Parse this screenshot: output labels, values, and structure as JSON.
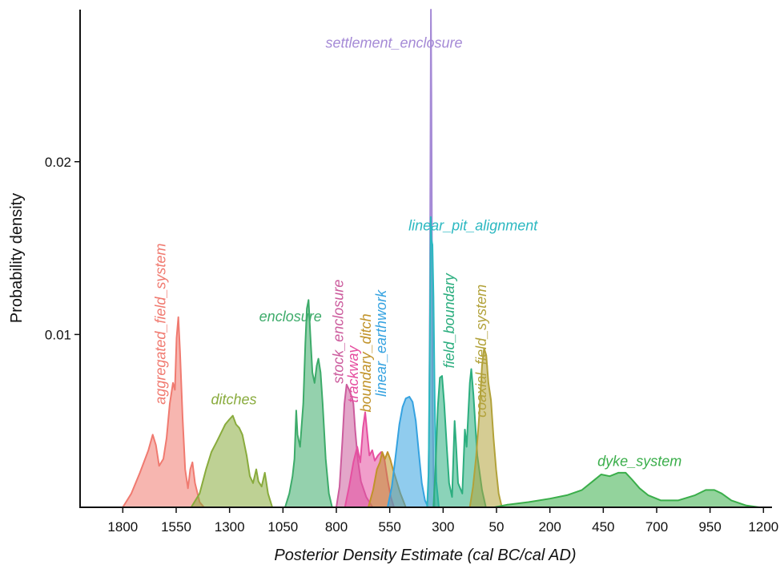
{
  "chart_data": {
    "type": "area",
    "xlabel": "Posterior Density Estimate (cal BC/cal AD)",
    "ylabel": "Probability density",
    "x_ticks": [
      "1800",
      "1550",
      "1300",
      "1050",
      "800",
      "550",
      "300",
      "50",
      "200",
      "450",
      "700",
      "950",
      "1200"
    ],
    "y_ticks": [
      "0.01",
      "0.02"
    ],
    "x_tick_values": [
      -1800,
      -1550,
      -1300,
      -1050,
      -800,
      -550,
      -300,
      -50,
      200,
      450,
      700,
      950,
      1200
    ],
    "y_tick_values": [
      0.01,
      0.02
    ],
    "xlim": [
      -2000,
      1240
    ],
    "ylim": [
      0,
      0.0288
    ],
    "series": [
      {
        "name": "aggregated_field_system",
        "color": "#f07a70",
        "points": [
          [
            -1800,
            0
          ],
          [
            -1760,
            0.0008
          ],
          [
            -1720,
            0.002
          ],
          [
            -1680,
            0.0033
          ],
          [
            -1660,
            0.0042
          ],
          [
            -1645,
            0.0036
          ],
          [
            -1630,
            0.0024
          ],
          [
            -1610,
            0.0028
          ],
          [
            -1595,
            0.004
          ],
          [
            -1580,
            0.006
          ],
          [
            -1565,
            0.0072
          ],
          [
            -1556,
            0.0068
          ],
          [
            -1548,
            0.0098
          ],
          [
            -1540,
            0.011
          ],
          [
            -1532,
            0.009
          ],
          [
            -1520,
            0.0052
          ],
          [
            -1508,
            0.0022
          ],
          [
            -1495,
            0.0011
          ],
          [
            -1484,
            0.0022
          ],
          [
            -1474,
            0.0026
          ],
          [
            -1462,
            0.0014
          ],
          [
            -1440,
            0.0003
          ],
          [
            -1420,
            0
          ]
        ]
      },
      {
        "name": "ditches",
        "color": "#89ab3d",
        "points": [
          [
            -1480,
            0
          ],
          [
            -1440,
            0.0008
          ],
          [
            -1410,
            0.0022
          ],
          [
            -1385,
            0.0032
          ],
          [
            -1360,
            0.0038
          ],
          [
            -1340,
            0.0043
          ],
          [
            -1320,
            0.0048
          ],
          [
            -1300,
            0.0051
          ],
          [
            -1285,
            0.0053
          ],
          [
            -1270,
            0.0048
          ],
          [
            -1255,
            0.0046
          ],
          [
            -1240,
            0.0042
          ],
          [
            -1220,
            0.003
          ],
          [
            -1205,
            0.0018
          ],
          [
            -1190,
            0.0014
          ],
          [
            -1175,
            0.0022
          ],
          [
            -1165,
            0.0015
          ],
          [
            -1150,
            0.0012
          ],
          [
            -1135,
            0.002
          ],
          [
            -1120,
            0.0008
          ],
          [
            -1100,
            0
          ]
        ]
      },
      {
        "name": "enclosure",
        "color": "#3dab6a",
        "points": [
          [
            -1040,
            0
          ],
          [
            -1020,
            0.0008
          ],
          [
            -1005,
            0.0018
          ],
          [
            -996,
            0.0028
          ],
          [
            -988,
            0.0056
          ],
          [
            -982,
            0.0042
          ],
          [
            -970,
            0.0035
          ],
          [
            -955,
            0.006
          ],
          [
            -945,
            0.0095
          ],
          [
            -938,
            0.0115
          ],
          [
            -930,
            0.012
          ],
          [
            -922,
            0.01
          ],
          [
            -912,
            0.0078
          ],
          [
            -902,
            0.0072
          ],
          [
            -892,
            0.0082
          ],
          [
            -884,
            0.0086
          ],
          [
            -874,
            0.0078
          ],
          [
            -864,
            0.006
          ],
          [
            -850,
            0.0028
          ],
          [
            -835,
            0.0008
          ],
          [
            -820,
            0
          ]
        ]
      },
      {
        "name": "stock_enclosure",
        "color": "#cc5c9d",
        "points": [
          [
            -800,
            0
          ],
          [
            -785,
            0.0012
          ],
          [
            -772,
            0.0038
          ],
          [
            -762,
            0.006
          ],
          [
            -752,
            0.0071
          ],
          [
            -740,
            0.0068
          ],
          [
            -728,
            0.0064
          ],
          [
            -720,
            0.006
          ],
          [
            -712,
            0.0045
          ],
          [
            -700,
            0.0028
          ],
          [
            -685,
            0.0015
          ],
          [
            -660,
            0.0006
          ],
          [
            -630,
            0
          ]
        ]
      },
      {
        "name": "trackway",
        "color": "#e64fa0",
        "points": [
          [
            -760,
            0
          ],
          [
            -740,
            0.0012
          ],
          [
            -720,
            0.0026
          ],
          [
            -702,
            0.0035
          ],
          [
            -688,
            0.0026
          ],
          [
            -675,
            0.0046
          ],
          [
            -665,
            0.0055
          ],
          [
            -655,
            0.0042
          ],
          [
            -645,
            0.003
          ],
          [
            -632,
            0.0033
          ],
          [
            -620,
            0.0027
          ],
          [
            -605,
            0.003
          ],
          [
            -590,
            0.0032
          ],
          [
            -575,
            0.0028
          ],
          [
            -560,
            0.0016
          ],
          [
            -545,
            0.0006
          ],
          [
            -530,
            0
          ]
        ]
      },
      {
        "name": "boundary_ditch",
        "color": "#c1932a",
        "points": [
          [
            -650,
            0
          ],
          [
            -628,
            0.001
          ],
          [
            -610,
            0.0022
          ],
          [
            -596,
            0.0026
          ],
          [
            -585,
            0.0032
          ],
          [
            -572,
            0.0028
          ],
          [
            -560,
            0.0032
          ],
          [
            -548,
            0.0028
          ],
          [
            -535,
            0.0022
          ],
          [
            -520,
            0.0016
          ],
          [
            -500,
            0.0008
          ],
          [
            -475,
            0
          ]
        ]
      },
      {
        "name": "linear_earthwork",
        "color": "#35a2e0",
        "points": [
          [
            -560,
            0
          ],
          [
            -540,
            0.0012
          ],
          [
            -522,
            0.003
          ],
          [
            -505,
            0.0048
          ],
          [
            -490,
            0.0058
          ],
          [
            -475,
            0.0063
          ],
          [
            -458,
            0.0064
          ],
          [
            -443,
            0.0061
          ],
          [
            -428,
            0.005
          ],
          [
            -414,
            0.0032
          ],
          [
            -400,
            0.0014
          ],
          [
            -385,
            0.0004
          ],
          [
            -370,
            0
          ]
        ]
      },
      {
        "name": "settlement_enclosure",
        "color": "#a58ad6",
        "points": [
          [
            -374,
            0
          ],
          [
            -370,
            0.001
          ],
          [
            -366,
            0.004
          ],
          [
            -362,
            0.012
          ],
          [
            -359,
            0.022
          ],
          [
            -357,
            0.0288
          ],
          [
            -355,
            0.024
          ],
          [
            -352,
            0.014
          ],
          [
            -349,
            0.006
          ],
          [
            -345,
            0.002
          ],
          [
            -340,
            0
          ]
        ]
      },
      {
        "name": "linear_pit_alignment",
        "color": "#2bb8c1",
        "points": [
          [
            -375,
            0
          ],
          [
            -368,
            0.002
          ],
          [
            -362,
            0.01
          ],
          [
            -358,
            0.0168
          ],
          [
            -355,
            0.0155
          ],
          [
            -350,
            0.0152
          ],
          [
            -345,
            0.0122
          ],
          [
            -339,
            0.006
          ],
          [
            -332,
            0.0015
          ],
          [
            -320,
            0
          ]
        ]
      },
      {
        "name": "field_boundary",
        "color": "#2cae7f",
        "points": [
          [
            -345,
            0
          ],
          [
            -335,
            0.0025
          ],
          [
            -325,
            0.0058
          ],
          [
            -315,
            0.0075
          ],
          [
            -305,
            0.0076
          ],
          [
            -295,
            0.006
          ],
          [
            -283,
            0.0035
          ],
          [
            -272,
            0.0014
          ],
          [
            -258,
            0.0006
          ],
          [
            -246,
            0.005
          ],
          [
            -240,
            0.0038
          ],
          [
            -230,
            0.0014
          ],
          [
            -210,
            0.0008
          ],
          [
            -198,
            0.0045
          ],
          [
            -190,
            0.0035
          ],
          [
            -175,
            0.0072
          ],
          [
            -168,
            0.008
          ],
          [
            -158,
            0.0065
          ],
          [
            -140,
            0.003
          ],
          [
            -118,
            0.001
          ],
          [
            -100,
            0
          ]
        ]
      },
      {
        "name": "coaxial_field_system",
        "color": "#b2a23a",
        "points": [
          [
            -175,
            0
          ],
          [
            -160,
            0.0012
          ],
          [
            -145,
            0.003
          ],
          [
            -130,
            0.0055
          ],
          [
            -118,
            0.0082
          ],
          [
            -108,
            0.0092
          ],
          [
            -98,
            0.0088
          ],
          [
            -88,
            0.0072
          ],
          [
            -76,
            0.0062
          ],
          [
            -64,
            0.004
          ],
          [
            -52,
            0.0022
          ],
          [
            -40,
            0.0008
          ],
          [
            -25,
            0
          ]
        ]
      },
      {
        "name": "dyke_system",
        "color": "#3aae4a",
        "points": [
          [
            -60,
            0
          ],
          [
            0,
            0.00015
          ],
          [
            100,
            0.0003
          ],
          [
            200,
            0.0005
          ],
          [
            280,
            0.0007
          ],
          [
            350,
            0.001
          ],
          [
            400,
            0.0015
          ],
          [
            440,
            0.0019
          ],
          [
            480,
            0.0018
          ],
          [
            520,
            0.002
          ],
          [
            555,
            0.002
          ],
          [
            585,
            0.0016
          ],
          [
            620,
            0.0011
          ],
          [
            660,
            0.0007
          ],
          [
            720,
            0.0004
          ],
          [
            800,
            0.0004
          ],
          [
            880,
            0.0007
          ],
          [
            930,
            0.001
          ],
          [
            970,
            0.001
          ],
          [
            1005,
            0.0008
          ],
          [
            1050,
            0.0004
          ],
          [
            1120,
            0.0001
          ],
          [
            1180,
            0
          ]
        ]
      }
    ],
    "labels": [
      {
        "text": "aggregated_field_system",
        "series": "aggregated_field_system",
        "x": -1600,
        "y": 0.00595,
        "rotate": -90
      },
      {
        "text": "ditches",
        "series": "ditches",
        "x": -1280,
        "y": 0.00595,
        "rotate": 0
      },
      {
        "text": "enclosure",
        "series": "enclosure",
        "x": -1015,
        "y": 0.01075,
        "rotate": 0
      },
      {
        "text": "stock_enclosure",
        "series": "stock_enclosure",
        "x": -768,
        "y": 0.00715,
        "rotate": -90
      },
      {
        "text": "trackway",
        "series": "trackway",
        "x": -698,
        "y": 0.00605,
        "rotate": -90
      },
      {
        "text": "boundary_ditch",
        "series": "boundary_ditch",
        "x": -638,
        "y": 0.0055,
        "rotate": -90
      },
      {
        "text": "linear_earthwork",
        "series": "linear_earthwork",
        "x": -568,
        "y": 0.0064,
        "rotate": -90
      },
      {
        "text": "settlement_enclosure",
        "series": "settlement_enclosure",
        "x": -530,
        "y": 0.0266,
        "rotate": 0
      },
      {
        "text": "linear_pit_alignment",
        "series": "linear_pit_alignment",
        "x": -160,
        "y": 0.01603,
        "rotate": 0
      },
      {
        "text": "field_boundary",
        "series": "field_boundary",
        "x": -248,
        "y": 0.00805,
        "rotate": -90
      },
      {
        "text": "coaxial_field_system",
        "series": "coaxial_field_system",
        "x": -98,
        "y": 0.0052,
        "rotate": -90
      },
      {
        "text": "dyke_system",
        "series": "dyke_system",
        "x": 620,
        "y": 0.0024,
        "rotate": 0
      }
    ],
    "grid": false,
    "legend": "none"
  }
}
